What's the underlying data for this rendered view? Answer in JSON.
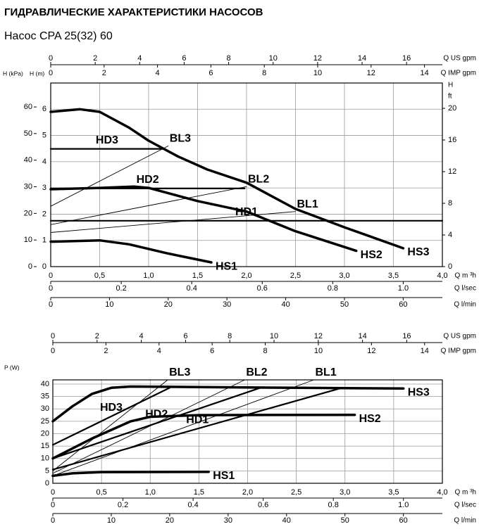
{
  "title": "ГИДРАВЛИЧЕСКИЕ ХАРАКТЕРИСТИКИ НАСОСОВ",
  "subtitle": "Насос CPA 25(32) 60",
  "chart_data": [
    {
      "type": "line",
      "grid": true,
      "xlabel": "Q m ³h",
      "xlim": [
        0,
        4
      ],
      "xticks": [
        0,
        {
          "value": 0.5,
          "label": "0,5"
        },
        {
          "value": 1,
          "label": "1,0"
        },
        {
          "value": 1.5,
          "label": "1,5"
        },
        {
          "value": 2,
          "label": "2,0"
        },
        {
          "value": 2.5,
          "label": "2,5"
        },
        {
          "value": 3,
          "label": "3,0"
        },
        {
          "value": 3.5,
          "label": "3,5"
        },
        {
          "value": 4,
          "label": "4,0"
        }
      ],
      "x_secondary": [
        {
          "label": "Q l/sec",
          "place": "bottom",
          "lim": [
            0,
            1.111
          ],
          "ticks": [
            0,
            0.2,
            0.4,
            0.6,
            0.8,
            {
              "value": 1,
              "label": "1.0"
            }
          ]
        },
        {
          "label": "Q l/min",
          "place": "bottom",
          "lim": [
            0,
            66.67
          ],
          "ticks": [
            0,
            10,
            20,
            30,
            40,
            50,
            60
          ]
        },
        {
          "label": "Q US gpm",
          "place": "top",
          "lim": [
            0,
            17.61
          ],
          "ticks": [
            0,
            2,
            4,
            6,
            8,
            10,
            12,
            14,
            16
          ]
        },
        {
          "label": "Q IMP gpm",
          "place": "top",
          "lim": [
            0,
            14.67
          ],
          "ticks": [
            0,
            2,
            4,
            6,
            8,
            10,
            12,
            14
          ]
        }
      ],
      "ylabel": "H (m)",
      "ylim": [
        0,
        7
      ],
      "yticks": [
        0,
        1,
        2,
        3,
        4,
        5,
        6
      ],
      "y_secondary": [
        {
          "label": "H (kPa)",
          "place": "left",
          "lim": [
            0,
            69
          ],
          "ticks": [
            0,
            10,
            20,
            30,
            40,
            50,
            60
          ]
        },
        {
          "label_lines": [
            "H",
            "ft"
          ],
          "place": "right",
          "lim": [
            0,
            23.2
          ],
          "ticks": [
            0,
            4,
            8,
            12,
            16,
            20
          ]
        }
      ],
      "series": [
        {
          "name": "HS3",
          "color": "#000000",
          "style": "bold",
          "label_pos": "end",
          "x": [
            0,
            0.3,
            0.5,
            0.8,
            1.0,
            1.3,
            1.6,
            2.0,
            2.5,
            3.0,
            3.6
          ],
          "values": [
            5.9,
            6.0,
            5.9,
            5.3,
            4.8,
            4.2,
            3.7,
            3.2,
            2.2,
            1.5,
            0.7
          ]
        },
        {
          "name": "HS2",
          "color": "#000000",
          "style": "bold",
          "label_pos": "end",
          "x": [
            0,
            0.5,
            0.85,
            1.0,
            1.5,
            2.0,
            2.5,
            3.12
          ],
          "values": [
            2.95,
            3.0,
            3.05,
            3.0,
            2.5,
            2.1,
            1.35,
            0.6
          ]
        },
        {
          "name": "HS1",
          "color": "#000000",
          "style": "bold",
          "label_pos": "end",
          "x": [
            0,
            0.5,
            0.8,
            1.2,
            1.64
          ],
          "values": [
            0.95,
            1.0,
            0.85,
            0.5,
            0.16
          ]
        },
        {
          "name": "HD3",
          "color": "#000000",
          "style": "medium",
          "label_pos": "mid-above",
          "x": [
            0,
            1.15
          ],
          "values": [
            4.49,
            4.49
          ]
        },
        {
          "name": "HD2",
          "color": "#000000",
          "style": "medium",
          "label_pos": "mid-above",
          "x": [
            0,
            1.98
          ],
          "values": [
            2.98,
            2.98
          ]
        },
        {
          "name": "HD1",
          "color": "#000000",
          "style": "medium",
          "label_pos": "mid-above",
          "x": [
            0,
            4
          ],
          "values": [
            1.75,
            1.75
          ]
        },
        {
          "name": "BL3",
          "color": "#000000",
          "style": "thin",
          "label_pos": "above-end",
          "x": [
            0,
            1.2
          ],
          "values": [
            2.3,
            4.6
          ]
        },
        {
          "name": "BL2",
          "color": "#000000",
          "style": "thin",
          "label_pos": "above-end",
          "x": [
            0,
            2.0
          ],
          "values": [
            1.6,
            3.05
          ]
        },
        {
          "name": "BL1",
          "color": "#000000",
          "style": "thin",
          "label_pos": "above-end",
          "x": [
            0,
            2.5
          ],
          "values": [
            1.3,
            2.1
          ]
        }
      ]
    },
    {
      "type": "line",
      "grid": true,
      "xlabel": "Q m ³h",
      "xlim": [
        0,
        4
      ],
      "xticks": [
        0,
        {
          "value": 0.5,
          "label": "0,5"
        },
        {
          "value": 1,
          "label": "1,0"
        },
        {
          "value": 1.5,
          "label": "1,5"
        },
        {
          "value": 2,
          "label": "2,0"
        },
        {
          "value": 2.5,
          "label": "2,5"
        },
        {
          "value": 3,
          "label": "3,0"
        },
        {
          "value": 3.5,
          "label": "3,5"
        },
        {
          "value": 4,
          "label": "4,0"
        }
      ],
      "x_secondary": [
        {
          "label": "Q l/sec",
          "place": "bottom",
          "lim": [
            0,
            1.111
          ],
          "ticks": [
            0,
            0.2,
            0.4,
            0.6,
            0.8,
            {
              "value": 1,
              "label": "1.0"
            }
          ]
        },
        {
          "label": "Q l/min",
          "place": "bottom",
          "lim": [
            0,
            66.67
          ],
          "ticks": [
            0,
            10,
            20,
            30,
            40,
            50,
            60
          ]
        },
        {
          "label": "Q US gpm",
          "place": "top",
          "lim": [
            0,
            17.61
          ],
          "ticks": [
            0,
            2,
            4,
            6,
            8,
            10,
            12,
            14,
            16
          ]
        },
        {
          "label": "Q IMP gpm",
          "place": "top",
          "lim": [
            0,
            14.67
          ],
          "ticks": [
            0,
            2,
            4,
            6,
            8,
            10,
            12,
            14
          ]
        }
      ],
      "ylabel": "P (W)",
      "ylim": [
        0,
        41.7
      ],
      "yticks": [
        0,
        5,
        10,
        15,
        20,
        25,
        30,
        35,
        40
      ],
      "y_secondary": [],
      "series": [
        {
          "name": "HS3",
          "color": "#000000",
          "style": "bold",
          "label_pos": "end",
          "x": [
            0,
            0.2,
            0.4,
            0.6,
            0.8,
            1.5,
            2.5,
            3.6
          ],
          "values": [
            25,
            31,
            36,
            38.5,
            39,
            38.8,
            38.5,
            38.2
          ]
        },
        {
          "name": "HS2",
          "color": "#000000",
          "style": "bold",
          "label_pos": "end",
          "x": [
            0,
            0.4,
            0.8,
            1.0,
            1.5,
            3.1
          ],
          "values": [
            10,
            18,
            25,
            26.8,
            27.5,
            27.6
          ]
        },
        {
          "name": "HS1",
          "color": "#000000",
          "style": "bold",
          "label_pos": "end",
          "x": [
            0,
            0.2,
            0.5,
            1.6
          ],
          "values": [
            3,
            4,
            4.5,
            4.6
          ]
        },
        {
          "name": "HD3",
          "color": "#000000",
          "style": "medium",
          "label_pos": "mid-above",
          "x": [
            0,
            1.2
          ],
          "values": [
            15.5,
            38.5
          ]
        },
        {
          "name": "HD2",
          "color": "#000000",
          "style": "medium",
          "label_pos": "mid-above",
          "x": [
            0,
            2.13
          ],
          "values": [
            10,
            38.5
          ]
        },
        {
          "name": "HD1",
          "color": "#000000",
          "style": "medium",
          "label_pos": "mid-above",
          "x": [
            0,
            2.97
          ],
          "values": [
            5.5,
            38.5
          ]
        },
        {
          "name": "BL3",
          "color": "#000000",
          "style": "thin",
          "label_pos": "above-end",
          "x": [
            0,
            1.18
          ],
          "values": [
            5,
            41.7
          ]
        },
        {
          "name": "BL2",
          "color": "#000000",
          "style": "thin",
          "label_pos": "above-end",
          "x": [
            0,
            1.97
          ],
          "values": [
            4,
            41.7
          ]
        },
        {
          "name": "BL1",
          "color": "#000000",
          "style": "thin",
          "label_pos": "above-end",
          "x": [
            0,
            2.68
          ],
          "values": [
            3,
            41.7
          ]
        }
      ]
    }
  ]
}
